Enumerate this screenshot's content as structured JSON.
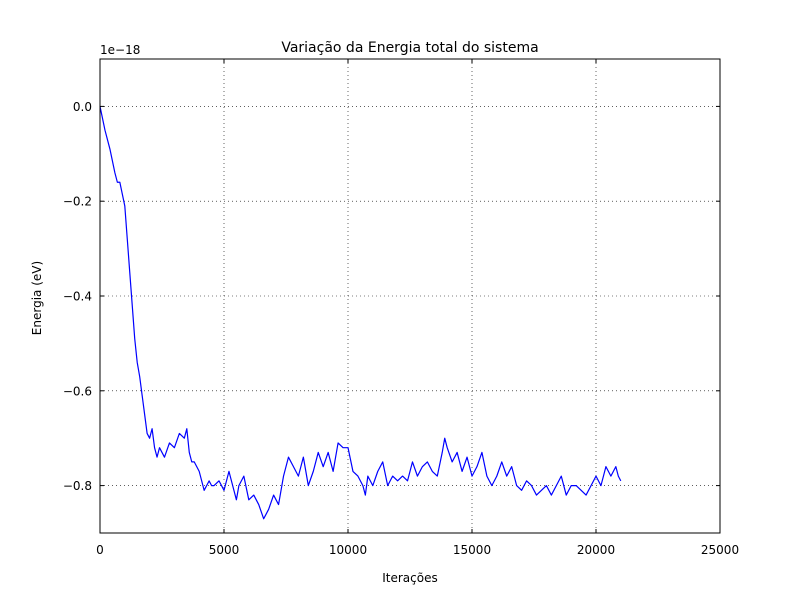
{
  "chart_data": {
    "type": "line",
    "title": "Variação da Energia total do sistema",
    "xlabel": "Iterações",
    "ylabel": "Energia (eV)",
    "offset_label": "1e−18",
    "xlim": [
      0,
      25000
    ],
    "ylim": [
      -0.9,
      0.1
    ],
    "xticks": [
      0,
      5000,
      10000,
      15000,
      20000,
      25000
    ],
    "xtick_labels": [
      "0",
      "5000",
      "10000",
      "15000",
      "20000",
      "25000"
    ],
    "yticks": [
      0.0,
      -0.2,
      -0.4,
      -0.6,
      -0.8
    ],
    "ytick_labels": [
      "0.0",
      "−0.2",
      "−0.4",
      "−0.6",
      "−0.8"
    ],
    "grid": true,
    "grid_style": "dotted",
    "series": [
      {
        "color": "#0000ff",
        "x": [
          0,
          200,
          400,
          600,
          700,
          800,
          1000,
          1100,
          1200,
          1300,
          1400,
          1500,
          1600,
          1700,
          1800,
          1900,
          2000,
          2100,
          2200,
          2300,
          2400,
          2500,
          2600,
          2800,
          3000,
          3200,
          3400,
          3500,
          3600,
          3700,
          3800,
          4000,
          4200,
          4400,
          4500,
          4600,
          4800,
          5000,
          5200,
          5400,
          5500,
          5600,
          5800,
          6000,
          6200,
          6400,
          6600,
          6700,
          6800,
          7000,
          7200,
          7400,
          7600,
          7800,
          8000,
          8200,
          8400,
          8600,
          8800,
          9000,
          9200,
          9400,
          9600,
          9800,
          10000,
          10200,
          10400,
          10600,
          10700,
          10800,
          11000,
          11200,
          11400,
          11600,
          11800,
          12000,
          12200,
          12400,
          12600,
          12800,
          13000,
          13200,
          13400,
          13600,
          13800,
          13900,
          14000,
          14200,
          14400,
          14600,
          14800,
          15000,
          15200,
          15400,
          15600,
          15800,
          16000,
          16200,
          16400,
          16600,
          16800,
          17000,
          17200,
          17400,
          17600,
          17800,
          18000,
          18200,
          18400,
          18600,
          18800,
          19000,
          19200,
          19400,
          19600,
          19800,
          20000,
          20200,
          20400,
          20600,
          20800,
          20900,
          21000
        ],
        "values": [
          0.0,
          -0.05,
          -0.09,
          -0.14,
          -0.16,
          -0.16,
          -0.21,
          -0.28,
          -0.35,
          -0.42,
          -0.49,
          -0.54,
          -0.57,
          -0.61,
          -0.65,
          -0.69,
          -0.7,
          -0.68,
          -0.72,
          -0.74,
          -0.72,
          -0.73,
          -0.74,
          -0.71,
          -0.72,
          -0.69,
          -0.7,
          -0.68,
          -0.73,
          -0.75,
          -0.75,
          -0.77,
          -0.81,
          -0.79,
          -0.8,
          -0.8,
          -0.79,
          -0.81,
          -0.77,
          -0.81,
          -0.83,
          -0.8,
          -0.78,
          -0.83,
          -0.82,
          -0.84,
          -0.87,
          -0.86,
          -0.85,
          -0.82,
          -0.84,
          -0.78,
          -0.74,
          -0.76,
          -0.78,
          -0.74,
          -0.8,
          -0.77,
          -0.73,
          -0.76,
          -0.73,
          -0.77,
          -0.71,
          -0.72,
          -0.72,
          -0.77,
          -0.78,
          -0.8,
          -0.82,
          -0.78,
          -0.8,
          -0.77,
          -0.75,
          -0.8,
          -0.78,
          -0.79,
          -0.78,
          -0.79,
          -0.75,
          -0.78,
          -0.76,
          -0.75,
          -0.77,
          -0.78,
          -0.73,
          -0.7,
          -0.72,
          -0.75,
          -0.73,
          -0.77,
          -0.74,
          -0.78,
          -0.76,
          -0.73,
          -0.78,
          -0.8,
          -0.78,
          -0.75,
          -0.78,
          -0.76,
          -0.8,
          -0.81,
          -0.79,
          -0.8,
          -0.82,
          -0.81,
          -0.8,
          -0.82,
          -0.8,
          -0.78,
          -0.82,
          -0.8,
          -0.8,
          -0.81,
          -0.82,
          -0.8,
          -0.78,
          -0.8,
          -0.76,
          -0.78,
          -0.76,
          -0.78,
          -0.79
        ]
      }
    ]
  }
}
